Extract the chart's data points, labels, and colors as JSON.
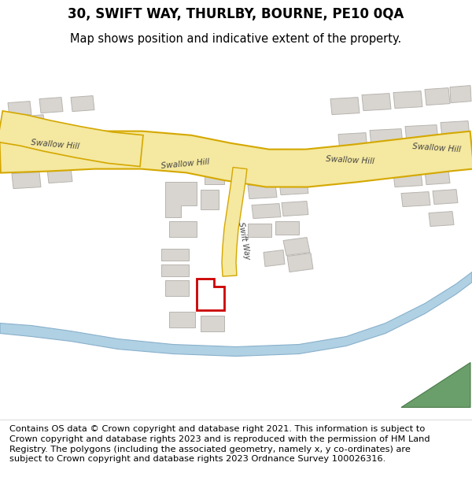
{
  "title_line1": "30, SWIFT WAY, THURLBY, BOURNE, PE10 0QA",
  "title_line2": "Map shows position and indicative extent of the property.",
  "footer_text": "Contains OS data © Crown copyright and database right 2021. This information is subject to Crown copyright and database rights 2023 and is reproduced with the permission of HM Land Registry. The polygons (including the associated geometry, namely x, y co-ordinates) are subject to Crown copyright and database rights 2023 Ordnance Survey 100026316.",
  "map_bg": "#f5f3f0",
  "road_color": "#f5e8a0",
  "road_outline": "#d4a800",
  "building_fill": "#d8d5d0",
  "building_outline": "#b8b5b0",
  "highlight_color": "#cc0000",
  "road_label_color": "#444444",
  "water_color": "#a8cce0",
  "water_outline": "#80aac8",
  "green_color": "#6a9e6a",
  "green_outline": "#4a7a4a",
  "title_fontsize": 12,
  "subtitle_fontsize": 10.5,
  "footer_fontsize": 8.2
}
